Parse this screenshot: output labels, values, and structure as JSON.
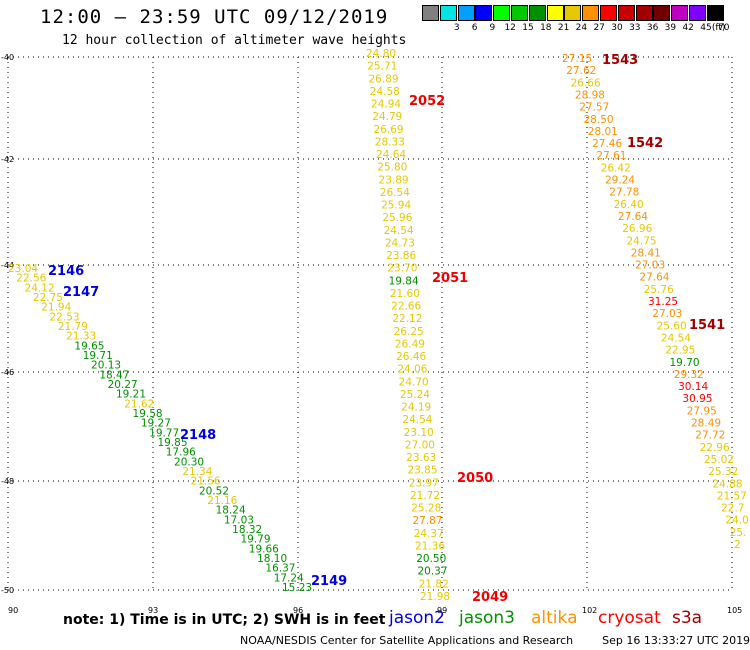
{
  "header": {
    "title": "12:00 – 23:59 UTC 09/12/2019",
    "subtitle": "12 hour collection of altimeter wave heights"
  },
  "color_scale": {
    "unit_label": "(ft)",
    "bins": [
      {
        "label": "",
        "color": "#808080"
      },
      {
        "label": "3",
        "color": "#00e4e4"
      },
      {
        "label": "6",
        "color": "#00a0ff"
      },
      {
        "label": "9",
        "color": "#0000ff"
      },
      {
        "label": "12",
        "color": "#00ff00"
      },
      {
        "label": "15",
        "color": "#00c800"
      },
      {
        "label": "18",
        "color": "#009000"
      },
      {
        "label": "21",
        "color": "#ffff00"
      },
      {
        "label": "24",
        "color": "#e6c800"
      },
      {
        "label": "27",
        "color": "#ff9000"
      },
      {
        "label": "30",
        "color": "#ff0000"
      },
      {
        "label": "33",
        "color": "#c80000"
      },
      {
        "label": "36",
        "color": "#a00000"
      },
      {
        "label": "39",
        "color": "#700000"
      },
      {
        "label": "42",
        "color": "#c000c0"
      },
      {
        "label": "45",
        "color": "#8000ff"
      },
      {
        "label": "70",
        "color": "#000000"
      }
    ]
  },
  "map": {
    "lon_ticks": [
      "90",
      "93",
      "96",
      "99",
      "102",
      "105"
    ],
    "lat_ticks": [
      "-40",
      "-42",
      "-44",
      "-46",
      "-48",
      "-50"
    ]
  },
  "note": "note: 1) Time is in UTC; 2) SWH is in feet",
  "missions": [
    {
      "name": "jason2",
      "color": "#0000dd"
    },
    {
      "name": "jason3",
      "color": "#009000"
    },
    {
      "name": "altika",
      "color": "#ff9000"
    },
    {
      "name": "cryosat",
      "color": "#ff0000"
    },
    {
      "name": "s3a",
      "color": "#a00000"
    }
  ],
  "footer": {
    "credit": "NOAA/NESDIS Center for Satellite Applications and Research",
    "generated": "Sep 16 13:33:27 UTC 2019"
  },
  "tracks": [
    {
      "readings": [
        {
          "v": "23.04",
          "c": "#e6c800"
        },
        {
          "v": "22.56",
          "c": "#e6c800"
        },
        {
          "v": "24.12",
          "c": "#e6c800"
        },
        {
          "v": "22.75",
          "c": "#e6c800"
        },
        {
          "v": "21.94",
          "c": "#e6c800"
        },
        {
          "v": "22.53",
          "c": "#e6c800"
        },
        {
          "v": "21.79",
          "c": "#e6c800"
        },
        {
          "v": "21.33",
          "c": "#e6c800"
        },
        {
          "v": "19.65",
          "c": "#009000"
        },
        {
          "v": "19.71",
          "c": "#009000"
        },
        {
          "v": "20.13",
          "c": "#009000"
        },
        {
          "v": "18.47",
          "c": "#009000"
        },
        {
          "v": "20.27",
          "c": "#009000"
        },
        {
          "v": "19.21",
          "c": "#009000"
        },
        {
          "v": "21.62",
          "c": "#e6c800"
        },
        {
          "v": "19.58",
          "c": "#009000"
        },
        {
          "v": "19.27",
          "c": "#009000"
        },
        {
          "v": "19.77",
          "c": "#009000"
        },
        {
          "v": "19.85",
          "c": "#009000"
        },
        {
          "v": "17.96",
          "c": "#009000"
        },
        {
          "v": "20.30",
          "c": "#009000"
        },
        {
          "v": "21.34",
          "c": "#e6c800"
        },
        {
          "v": "21.56",
          "c": "#e6c800"
        },
        {
          "v": "20.52",
          "c": "#009000"
        },
        {
          "v": "21.16",
          "c": "#e6c800"
        },
        {
          "v": "18.24",
          "c": "#009000"
        },
        {
          "v": "17.03",
          "c": "#009000"
        },
        {
          "v": "18.32",
          "c": "#009000"
        },
        {
          "v": "19.79",
          "c": "#009000"
        },
        {
          "v": "19.66",
          "c": "#009000"
        },
        {
          "v": "18.10",
          "c": "#009000"
        },
        {
          "v": "16.37",
          "c": "#009000"
        },
        {
          "v": "17.24",
          "c": "#009000"
        },
        {
          "v": "15.23",
          "c": "#009000"
        }
      ],
      "passes": [
        {
          "id": "2146",
          "color": "#0000dd"
        },
        {
          "id": "2147",
          "color": "#0000dd"
        },
        {
          "id": "2148",
          "color": "#0000dd"
        },
        {
          "id": "2149",
          "color": "#0000dd"
        }
      ]
    },
    {
      "readings": [
        {
          "v": "24.80",
          "c": "#e6c800"
        },
        {
          "v": "25.71",
          "c": "#e6c800"
        },
        {
          "v": "26.89",
          "c": "#e6c800"
        },
        {
          "v": "24.58",
          "c": "#e6c800"
        },
        {
          "v": "24.94",
          "c": "#e6c800"
        },
        {
          "v": "24.79",
          "c": "#e6c800"
        },
        {
          "v": "26.69",
          "c": "#e6c800"
        },
        {
          "v": "28.33",
          "c": "#e6c800"
        },
        {
          "v": "24.64",
          "c": "#e6c800"
        },
        {
          "v": "25.80",
          "c": "#e6c800"
        },
        {
          "v": "23.89",
          "c": "#e6c800"
        },
        {
          "v": "26.54",
          "c": "#e6c800"
        },
        {
          "v": "25.94",
          "c": "#e6c800"
        },
        {
          "v": "25.96",
          "c": "#e6c800"
        },
        {
          "v": "24.54",
          "c": "#e6c800"
        },
        {
          "v": "24.73",
          "c": "#e6c800"
        },
        {
          "v": "23.86",
          "c": "#e6c800"
        },
        {
          "v": "23.70",
          "c": "#e6c800"
        },
        {
          "v": "19.84",
          "c": "#009000"
        },
        {
          "v": "21.60",
          "c": "#e6c800"
        },
        {
          "v": "22.66",
          "c": "#e6c800"
        },
        {
          "v": "22.12",
          "c": "#e6c800"
        },
        {
          "v": "26.25",
          "c": "#e6c800"
        },
        {
          "v": "26.49",
          "c": "#e6c800"
        },
        {
          "v": "26.46",
          "c": "#e6c800"
        },
        {
          "v": "24.06",
          "c": "#e6c800"
        },
        {
          "v": "24.70",
          "c": "#e6c800"
        },
        {
          "v": "25.24",
          "c": "#e6c800"
        },
        {
          "v": "24.19",
          "c": "#e6c800"
        },
        {
          "v": "24.54",
          "c": "#e6c800"
        },
        {
          "v": "23.10",
          "c": "#e6c800"
        },
        {
          "v": "27.00",
          "c": "#e6c800"
        },
        {
          "v": "23.63",
          "c": "#e6c800"
        },
        {
          "v": "23.85",
          "c": "#e6c800"
        },
        {
          "v": "23.97",
          "c": "#e6c800"
        },
        {
          "v": "21.72",
          "c": "#e6c800"
        },
        {
          "v": "25.28",
          "c": "#e6c800"
        },
        {
          "v": "27.87",
          "c": "#ff9000"
        },
        {
          "v": "24.37",
          "c": "#e6c800"
        },
        {
          "v": "21.36",
          "c": "#e6c800"
        },
        {
          "v": "20.50",
          "c": "#009000"
        },
        {
          "v": "20.37",
          "c": "#009000"
        },
        {
          "v": "21.82",
          "c": "#e6c800"
        },
        {
          "v": "21.98",
          "c": "#e6c800"
        }
      ],
      "passes": [
        {
          "id": "2052",
          "color": "#ee0000"
        },
        {
          "id": "2051",
          "color": "#ee0000"
        },
        {
          "id": "2050",
          "color": "#ee0000"
        },
        {
          "id": "2049",
          "color": "#ee0000"
        }
      ]
    },
    {
      "readings": [
        {
          "v": "27.15",
          "c": "#ff9000"
        },
        {
          "v": "27.62",
          "c": "#ff9000"
        },
        {
          "v": "26.66",
          "c": "#e6c800"
        },
        {
          "v": "28.98",
          "c": "#ff9000"
        },
        {
          "v": "27.57",
          "c": "#ff9000"
        },
        {
          "v": "28.50",
          "c": "#ff9000"
        },
        {
          "v": "28.01",
          "c": "#ff9000"
        },
        {
          "v": "27.46",
          "c": "#ff9000"
        },
        {
          "v": "27.61",
          "c": "#ff9000"
        },
        {
          "v": "26.42",
          "c": "#e6c800"
        },
        {
          "v": "29.24",
          "c": "#ff9000"
        },
        {
          "v": "27.78",
          "c": "#ff9000"
        },
        {
          "v": "26.40",
          "c": "#e6c800"
        },
        {
          "v": "27.64",
          "c": "#ff9000"
        },
        {
          "v": "26.96",
          "c": "#e6c800"
        },
        {
          "v": "24.75",
          "c": "#e6c800"
        },
        {
          "v": "28.41",
          "c": "#ff9000"
        },
        {
          "v": "27.03",
          "c": "#ff9000"
        },
        {
          "v": "27.64",
          "c": "#ff9000"
        },
        {
          "v": "25.76",
          "c": "#e6c800"
        },
        {
          "v": "31.25",
          "c": "#ff0000"
        },
        {
          "v": "27.03",
          "c": "#ff9000"
        },
        {
          "v": "25.60",
          "c": "#e6c800"
        },
        {
          "v": "24.54",
          "c": "#e6c800"
        },
        {
          "v": "22.95",
          "c": "#e6c800"
        },
        {
          "v": "19.70",
          "c": "#009000"
        },
        {
          "v": "29.32",
          "c": "#ff9000"
        },
        {
          "v": "30.14",
          "c": "#ff0000"
        },
        {
          "v": "30.95",
          "c": "#ff0000"
        },
        {
          "v": "27.95",
          "c": "#ff9000"
        },
        {
          "v": "28.49",
          "c": "#ff9000"
        },
        {
          "v": "27.72",
          "c": "#ff9000"
        },
        {
          "v": "22.96",
          "c": "#e6c800"
        },
        {
          "v": "25.02",
          "c": "#e6c800"
        },
        {
          "v": "25.32",
          "c": "#e6c800"
        },
        {
          "v": "24.88",
          "c": "#e6c800"
        },
        {
          "v": "21.57",
          "c": "#e6c800"
        },
        {
          "v": "22.7",
          "c": "#e6c800"
        },
        {
          "v": "24.0",
          "c": "#e6c800"
        },
        {
          "v": "25.",
          "c": "#e6c800"
        },
        {
          "v": "2",
          "c": "#e6c800"
        }
      ],
      "passes": [
        {
          "id": "1543",
          "color": "#a00000"
        },
        {
          "id": "1542",
          "color": "#a00000"
        },
        {
          "id": "1541",
          "color": "#a00000"
        }
      ]
    }
  ]
}
